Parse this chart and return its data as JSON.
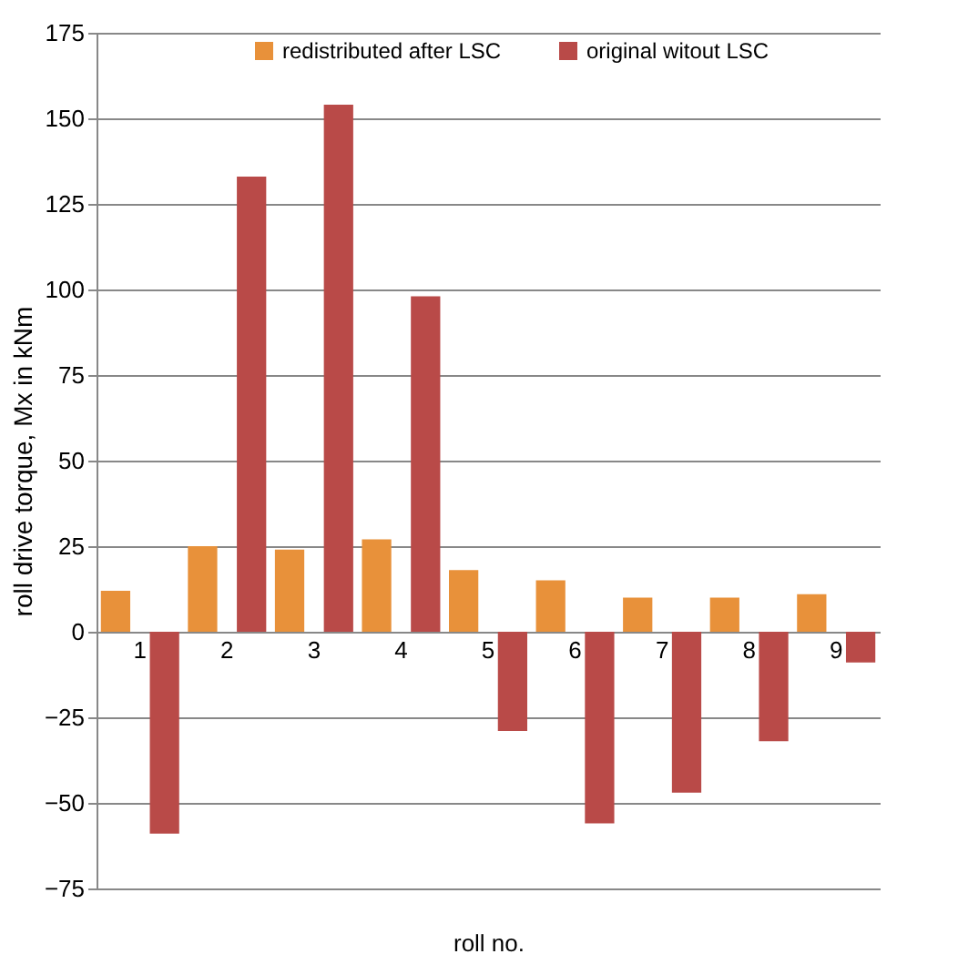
{
  "chart_data": {
    "type": "bar",
    "xlabel": "roll no.",
    "ylabel": "roll drive torque, Mx in kNm",
    "categories": [
      "1",
      "2",
      "3",
      "4",
      "5",
      "6",
      "7",
      "8",
      "9"
    ],
    "series": [
      {
        "name": "redistributed after LSC",
        "color": "#e8913a",
        "values": [
          12,
          25,
          24,
          27,
          18,
          15,
          10,
          10,
          11
        ]
      },
      {
        "name": "original witout LSC",
        "color": "#b94a48",
        "values": [
          -59,
          133,
          154,
          98,
          -29,
          -56,
          -47,
          -32,
          -9
        ]
      }
    ],
    "ylim": [
      -75,
      175
    ],
    "yticks": [
      -75,
      -50,
      -25,
      0,
      25,
      50,
      75,
      100,
      125,
      150,
      175
    ],
    "grid": "y",
    "legend": "top"
  }
}
